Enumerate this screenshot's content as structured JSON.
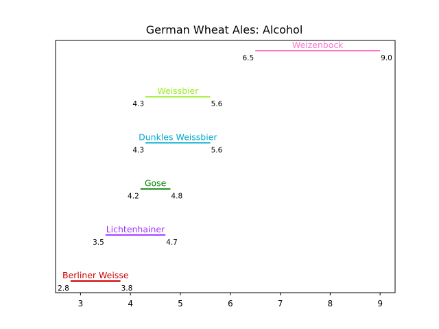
{
  "chart_data": {
    "type": "range",
    "title": "German Wheat Ales: Alcohol",
    "xlabel": "",
    "ylabel": "",
    "xlim": [
      2.5,
      9.3
    ],
    "xticks": [
      3,
      4,
      5,
      6,
      7,
      8,
      9
    ],
    "grid": false,
    "series": [
      {
        "name": "Berliner Weisse",
        "min": 2.8,
        "max": 3.8,
        "min_label": "2.8",
        "max_label": "3.8",
        "color": "#cc0000"
      },
      {
        "name": "Lichtenhainer",
        "min": 3.5,
        "max": 4.7,
        "min_label": "3.5",
        "max_label": "4.7",
        "color": "#9933ff"
      },
      {
        "name": "Gose",
        "min": 4.2,
        "max": 4.8,
        "min_label": "4.2",
        "max_label": "4.8",
        "color": "#008000"
      },
      {
        "name": "Dunkles Weissbier",
        "min": 4.3,
        "max": 5.6,
        "min_label": "4.3",
        "max_label": "5.6",
        "color": "#00aacc"
      },
      {
        "name": "Weissbier",
        "min": 4.3,
        "max": 5.6,
        "min_label": "4.3",
        "max_label": "5.6",
        "color": "#99ee22"
      },
      {
        "name": "Weizenbock",
        "min": 6.5,
        "max": 9.0,
        "min_label": "6.5",
        "max_label": "9.0",
        "color": "#ff77cc"
      }
    ]
  }
}
